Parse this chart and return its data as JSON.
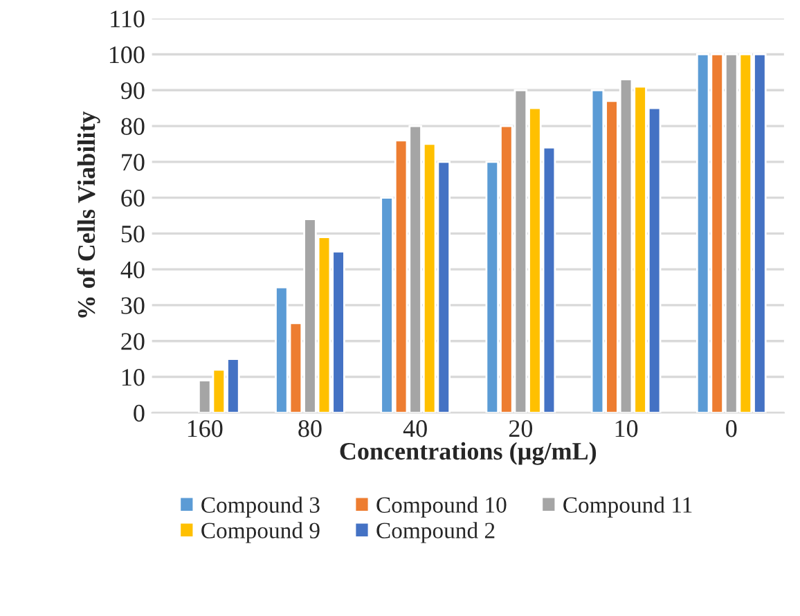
{
  "chart_data": {
    "type": "bar",
    "xlabel": "Concentrations (µg/mL)",
    "ylabel": "% of Cells Viability",
    "categories": [
      "160",
      "80",
      "40",
      "20",
      "10",
      "0"
    ],
    "series": [
      {
        "name": "Compound 3",
        "color": "#5b9bd5",
        "values": [
          null,
          35,
          60,
          70,
          90,
          100
        ]
      },
      {
        "name": "Compound 10",
        "color": "#ed7d31",
        "values": [
          null,
          25,
          76,
          80,
          87,
          100
        ]
      },
      {
        "name": "Compound 11",
        "color": "#a5a5a5",
        "values": [
          9,
          54,
          80,
          90,
          93,
          100
        ]
      },
      {
        "name": "Compound 9",
        "color": "#ffc000",
        "values": [
          12,
          49,
          75,
          85,
          91,
          100
        ]
      },
      {
        "name": "Compound 2",
        "color": "#4472c4",
        "values": [
          15,
          45,
          70,
          74,
          85,
          100
        ]
      }
    ],
    "ylim": [
      0,
      110
    ],
    "yticks": [
      0,
      10,
      20,
      30,
      40,
      50,
      60,
      70,
      80,
      90,
      100,
      110
    ],
    "grid": "y",
    "legend": "bottom"
  }
}
